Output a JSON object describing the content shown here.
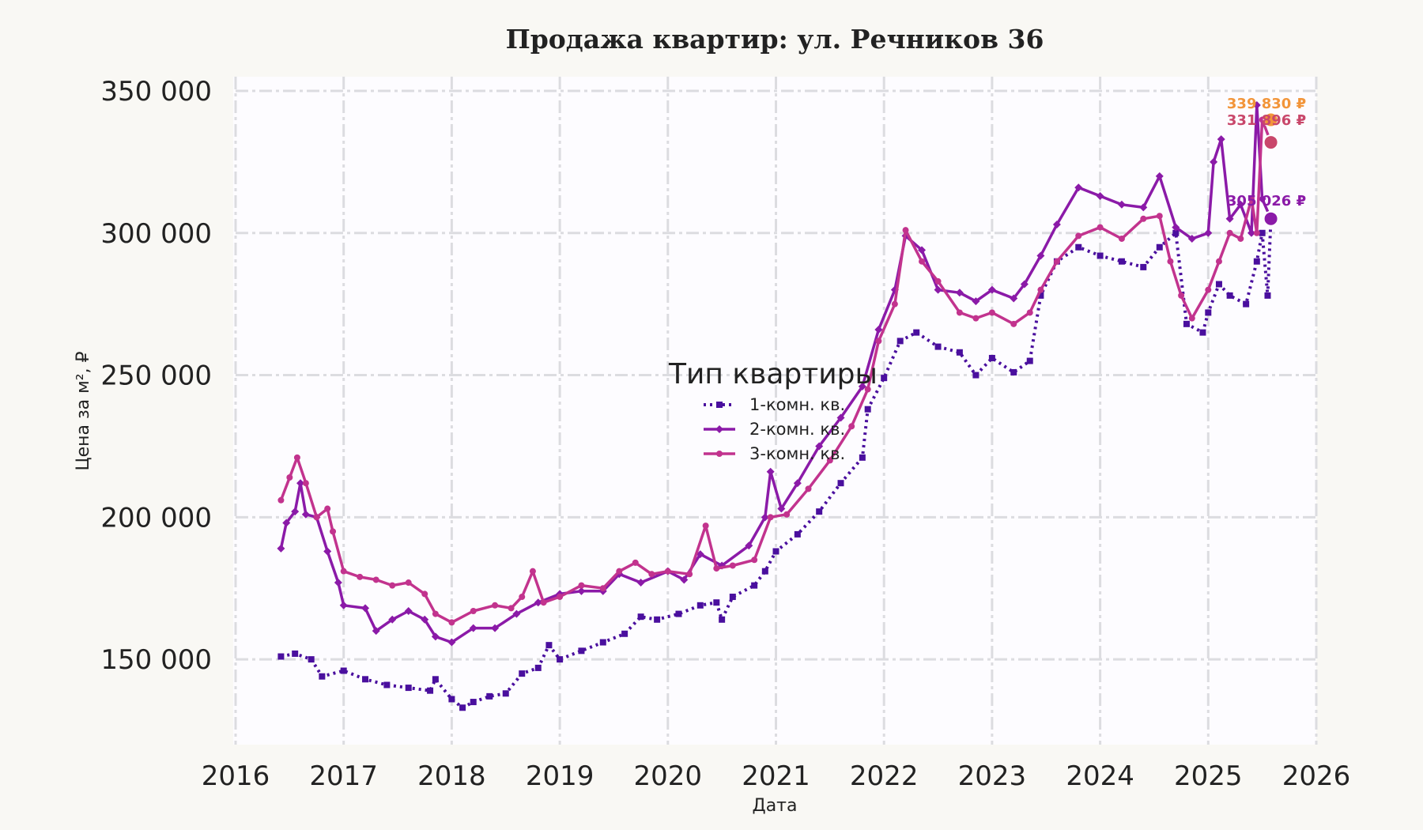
{
  "chart_data": {
    "type": "line",
    "title": "Продажа квартир: ул. Речников 36",
    "xlabel": "Дата",
    "ylabel": "Цена за м², ₽",
    "xlim": [
      2016,
      2026
    ],
    "ylim": [
      120000,
      355000
    ],
    "x_ticks": [
      2016,
      2017,
      2018,
      2019,
      2020,
      2021,
      2022,
      2023,
      2024,
      2025,
      2026
    ],
    "x_tick_labels": [
      "2016",
      "2017",
      "2018",
      "2019",
      "2020",
      "2021",
      "2022",
      "2023",
      "2024",
      "2025",
      "2026"
    ],
    "y_ticks": [
      150000,
      200000,
      250000,
      300000,
      350000
    ],
    "y_tick_labels": [
      "150 000",
      "200 000",
      "250 000",
      "300 000",
      "350 000"
    ],
    "grid": true,
    "legend": {
      "title": "Тип квартиры",
      "placement": "center"
    },
    "series": [
      {
        "name": "1-комн. кв.",
        "color": "#4a0f9e",
        "style": "dotted",
        "marker": "square",
        "points": [
          [
            2016.42,
            151000
          ],
          [
            2016.55,
            152000
          ],
          [
            2016.7,
            150000
          ],
          [
            2016.8,
            144000
          ],
          [
            2017.0,
            146000
          ],
          [
            2017.2,
            143000
          ],
          [
            2017.4,
            141000
          ],
          [
            2017.6,
            140000
          ],
          [
            2017.8,
            139000
          ],
          [
            2017.85,
            143000
          ],
          [
            2018.0,
            136000
          ],
          [
            2018.1,
            133000
          ],
          [
            2018.2,
            135000
          ],
          [
            2018.35,
            137000
          ],
          [
            2018.5,
            138000
          ],
          [
            2018.65,
            145000
          ],
          [
            2018.8,
            147000
          ],
          [
            2018.9,
            155000
          ],
          [
            2019.0,
            150000
          ],
          [
            2019.2,
            153000
          ],
          [
            2019.4,
            156000
          ],
          [
            2019.6,
            159000
          ],
          [
            2019.75,
            165000
          ],
          [
            2019.9,
            164000
          ],
          [
            2020.1,
            166000
          ],
          [
            2020.3,
            169000
          ],
          [
            2020.45,
            170000
          ],
          [
            2020.5,
            164000
          ],
          [
            2020.6,
            172000
          ],
          [
            2020.8,
            176000
          ],
          [
            2020.9,
            181000
          ],
          [
            2021.0,
            188000
          ],
          [
            2021.2,
            194000
          ],
          [
            2021.4,
            202000
          ],
          [
            2021.6,
            212000
          ],
          [
            2021.8,
            221000
          ],
          [
            2021.85,
            238000
          ],
          [
            2022.0,
            249000
          ],
          [
            2022.15,
            262000
          ],
          [
            2022.3,
            265000
          ],
          [
            2022.5,
            260000
          ],
          [
            2022.7,
            258000
          ],
          [
            2022.85,
            250000
          ],
          [
            2023.0,
            256000
          ],
          [
            2023.2,
            251000
          ],
          [
            2023.35,
            255000
          ],
          [
            2023.45,
            278000
          ],
          [
            2023.6,
            290000
          ],
          [
            2023.8,
            295000
          ],
          [
            2024.0,
            292000
          ],
          [
            2024.2,
            290000
          ],
          [
            2024.4,
            288000
          ],
          [
            2024.55,
            295000
          ],
          [
            2024.7,
            300000
          ],
          [
            2024.8,
            268000
          ],
          [
            2024.95,
            265000
          ],
          [
            2025.0,
            272000
          ],
          [
            2025.1,
            282000
          ],
          [
            2025.2,
            278000
          ],
          [
            2025.35,
            275000
          ],
          [
            2025.45,
            290000
          ],
          [
            2025.5,
            300000
          ],
          [
            2025.55,
            278000
          ],
          [
            2025.58,
            305026
          ]
        ]
      },
      {
        "name": "2-комн. кв.",
        "color": "#8b1aa8",
        "style": "solid",
        "marker": "diamond",
        "points": [
          [
            2016.42,
            189000
          ],
          [
            2016.47,
            198000
          ],
          [
            2016.55,
            202000
          ],
          [
            2016.6,
            212000
          ],
          [
            2016.65,
            201000
          ],
          [
            2016.75,
            200000
          ],
          [
            2016.85,
            188000
          ],
          [
            2016.95,
            177000
          ],
          [
            2017.0,
            169000
          ],
          [
            2017.2,
            168000
          ],
          [
            2017.3,
            160000
          ],
          [
            2017.45,
            164000
          ],
          [
            2017.6,
            167000
          ],
          [
            2017.75,
            164000
          ],
          [
            2017.85,
            158000
          ],
          [
            2018.0,
            156000
          ],
          [
            2018.2,
            161000
          ],
          [
            2018.4,
            161000
          ],
          [
            2018.6,
            166000
          ],
          [
            2018.8,
            170000
          ],
          [
            2019.0,
            173000
          ],
          [
            2019.2,
            174000
          ],
          [
            2019.4,
            174000
          ],
          [
            2019.55,
            180000
          ],
          [
            2019.75,
            177000
          ],
          [
            2020.0,
            181000
          ],
          [
            2020.15,
            178000
          ],
          [
            2020.3,
            187000
          ],
          [
            2020.5,
            183000
          ],
          [
            2020.75,
            190000
          ],
          [
            2020.9,
            200000
          ],
          [
            2020.95,
            216000
          ],
          [
            2021.05,
            203000
          ],
          [
            2021.2,
            212000
          ],
          [
            2021.4,
            225000
          ],
          [
            2021.6,
            235000
          ],
          [
            2021.8,
            246000
          ],
          [
            2021.95,
            266000
          ],
          [
            2022.1,
            280000
          ],
          [
            2022.2,
            299000
          ],
          [
            2022.35,
            294000
          ],
          [
            2022.5,
            280000
          ],
          [
            2022.7,
            279000
          ],
          [
            2022.85,
            276000
          ],
          [
            2023.0,
            280000
          ],
          [
            2023.2,
            277000
          ],
          [
            2023.3,
            282000
          ],
          [
            2023.45,
            292000
          ],
          [
            2023.6,
            303000
          ],
          [
            2023.8,
            316000
          ],
          [
            2024.0,
            313000
          ],
          [
            2024.2,
            310000
          ],
          [
            2024.4,
            309000
          ],
          [
            2024.55,
            320000
          ],
          [
            2024.7,
            302000
          ],
          [
            2024.85,
            298000
          ],
          [
            2025.0,
            300000
          ],
          [
            2025.05,
            325000
          ],
          [
            2025.12,
            333000
          ],
          [
            2025.2,
            305000
          ],
          [
            2025.3,
            310000
          ],
          [
            2025.4,
            300000
          ],
          [
            2025.45,
            345000
          ],
          [
            2025.5,
            312000
          ],
          [
            2025.58,
            305026
          ]
        ]
      },
      {
        "name": "3-комн. кв.",
        "color": "#c2338e",
        "style": "solid",
        "marker": "circle",
        "points": [
          [
            2016.42,
            206000
          ],
          [
            2016.5,
            214000
          ],
          [
            2016.57,
            221000
          ],
          [
            2016.65,
            212000
          ],
          [
            2016.75,
            200000
          ],
          [
            2016.85,
            203000
          ],
          [
            2016.9,
            195000
          ],
          [
            2017.0,
            181000
          ],
          [
            2017.15,
            179000
          ],
          [
            2017.3,
            178000
          ],
          [
            2017.45,
            176000
          ],
          [
            2017.6,
            177000
          ],
          [
            2017.75,
            173000
          ],
          [
            2017.85,
            166000
          ],
          [
            2018.0,
            163000
          ],
          [
            2018.2,
            167000
          ],
          [
            2018.4,
            169000
          ],
          [
            2018.55,
            168000
          ],
          [
            2018.65,
            172000
          ],
          [
            2018.75,
            181000
          ],
          [
            2018.85,
            170000
          ],
          [
            2019.0,
            172000
          ],
          [
            2019.2,
            176000
          ],
          [
            2019.4,
            175000
          ],
          [
            2019.55,
            181000
          ],
          [
            2019.7,
            184000
          ],
          [
            2019.85,
            180000
          ],
          [
            2020.0,
            181000
          ],
          [
            2020.2,
            180000
          ],
          [
            2020.35,
            197000
          ],
          [
            2020.45,
            182000
          ],
          [
            2020.6,
            183000
          ],
          [
            2020.8,
            185000
          ],
          [
            2020.95,
            200000
          ],
          [
            2021.1,
            201000
          ],
          [
            2021.3,
            210000
          ],
          [
            2021.5,
            220000
          ],
          [
            2021.7,
            232000
          ],
          [
            2021.85,
            245000
          ],
          [
            2021.95,
            262000
          ],
          [
            2022.1,
            275000
          ],
          [
            2022.2,
            301000
          ],
          [
            2022.35,
            290000
          ],
          [
            2022.5,
            283000
          ],
          [
            2022.7,
            272000
          ],
          [
            2022.85,
            270000
          ],
          [
            2023.0,
            272000
          ],
          [
            2023.2,
            268000
          ],
          [
            2023.35,
            272000
          ],
          [
            2023.45,
            280000
          ],
          [
            2023.6,
            290000
          ],
          [
            2023.8,
            299000
          ],
          [
            2024.0,
            302000
          ],
          [
            2024.2,
            298000
          ],
          [
            2024.4,
            305000
          ],
          [
            2024.55,
            306000
          ],
          [
            2024.65,
            290000
          ],
          [
            2024.75,
            278000
          ],
          [
            2024.85,
            270000
          ],
          [
            2025.0,
            280000
          ],
          [
            2025.1,
            290000
          ],
          [
            2025.2,
            300000
          ],
          [
            2025.3,
            298000
          ],
          [
            2025.4,
            312000
          ],
          [
            2025.45,
            300000
          ],
          [
            2025.5,
            339830
          ],
          [
            2025.58,
            331896
          ]
        ]
      }
    ],
    "end_labels": [
      {
        "text": "339 830 ₽",
        "value": 339830,
        "color": "#f2953a"
      },
      {
        "text": "331 896 ₽",
        "value": 331896,
        "color": "#c9476b"
      },
      {
        "text": "305 026 ₽",
        "value": 305026,
        "color": "#8b1aa8"
      }
    ]
  }
}
